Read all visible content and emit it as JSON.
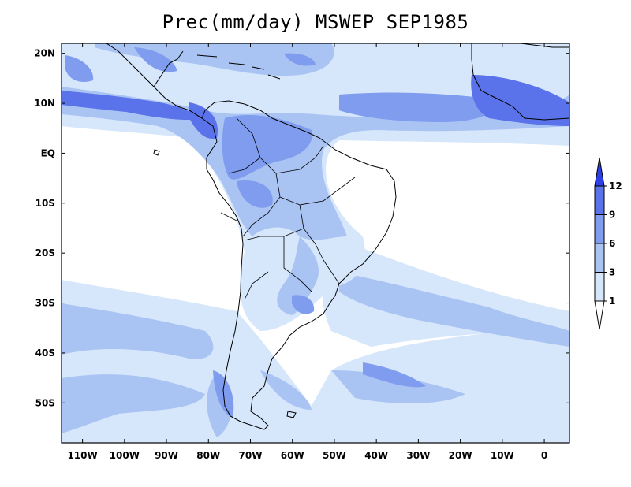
{
  "title": "Prec(mm/day) MSWEP SEP1985",
  "map": {
    "extent": {
      "lon": [
        -115,
        6
      ],
      "lat": [
        -58,
        22
      ]
    },
    "lat_ticks": [
      {
        "value": 20,
        "label": "20N"
      },
      {
        "value": 10,
        "label": "10N"
      },
      {
        "value": 0,
        "label": "EQ"
      },
      {
        "value": -10,
        "label": "10S"
      },
      {
        "value": -20,
        "label": "20S"
      },
      {
        "value": -30,
        "label": "30S"
      },
      {
        "value": -40,
        "label": "40S"
      },
      {
        "value": -50,
        "label": "50S"
      }
    ],
    "lon_ticks": [
      {
        "value": -110,
        "label": "110W"
      },
      {
        "value": -100,
        "label": "100W"
      },
      {
        "value": -90,
        "label": "90W"
      },
      {
        "value": -80,
        "label": "80W"
      },
      {
        "value": -70,
        "label": "70W"
      },
      {
        "value": -60,
        "label": "60W"
      },
      {
        "value": -50,
        "label": "50W"
      },
      {
        "value": -40,
        "label": "40W"
      },
      {
        "value": -30,
        "label": "30W"
      },
      {
        "value": -20,
        "label": "20W"
      },
      {
        "value": -10,
        "label": "10W"
      },
      {
        "value": 0,
        "label": "0"
      }
    ]
  },
  "colorbar": {
    "levels": [
      "1",
      "3",
      "6",
      "9",
      "12"
    ],
    "colors": [
      "#ffffff",
      "#d6e6fb",
      "#a9c3f3",
      "#7f9cef",
      "#5a72ea",
      "#2f3fe6"
    ]
  }
}
